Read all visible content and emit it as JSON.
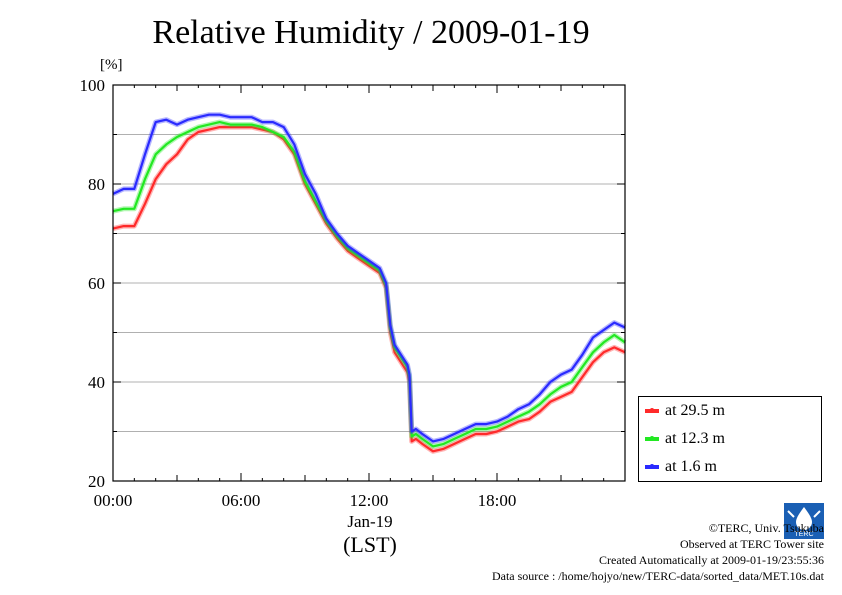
{
  "title": "Relative Humidity / 2009-01-19",
  "date_label": "Jan-19",
  "tz_label": "(LST)",
  "credits": {
    "copyright": "©TERC, Univ. Tsukuba",
    "observed": "Observed at TERC Tower site",
    "created": "Created Automatically at 2009-01-19/23:55:36",
    "source": "Data source : /home/hojyo/new/TERC-data/sorted_data/MET.10s.dat"
  },
  "logo": {
    "icon": "terc-logo-icon",
    "text": "TERC"
  },
  "colors": {
    "at_29_5": "#ff2a2a",
    "at_12_3": "#22e822",
    "at_1_6": "#2a2aff"
  },
  "chart_data": {
    "type": "line",
    "title": "Relative Humidity / 2009-01-19",
    "ylabel": "[%]",
    "xlabel": "Jan-19 (LST)",
    "ylim": [
      20,
      100
    ],
    "xlim": [
      0,
      24
    ],
    "x_unit": "hour (LST)",
    "xticks": [
      0,
      6,
      12,
      18
    ],
    "xtick_labels": [
      "00:00",
      "06:00",
      "12:00",
      "18:00"
    ],
    "yticks": [
      20,
      40,
      60,
      80,
      100
    ],
    "ytick_labels": [
      "20",
      "40",
      "60",
      "80",
      "100"
    ],
    "grid": "horizontal",
    "legend_position": "bottom-right",
    "x": [
      0,
      0.5,
      1,
      1.5,
      2,
      2.5,
      3,
      3.5,
      4,
      4.5,
      5,
      5.5,
      6,
      6.5,
      7,
      7.5,
      8,
      8.5,
      9,
      9.5,
      10,
      10.5,
      11,
      11.5,
      12,
      12.5,
      12.8,
      13,
      13.2,
      13.5,
      13.8,
      13.9,
      14,
      14.2,
      14.5,
      15,
      15.5,
      16,
      16.5,
      17,
      17.5,
      18,
      18.5,
      19,
      19.5,
      20,
      20.5,
      21,
      21.5,
      22,
      22.5,
      23,
      23.5,
      24
    ],
    "series": [
      {
        "name": "at 29.5 m",
        "values": [
          71,
          71.5,
          71.5,
          76,
          81,
          84,
          86,
          89,
          90.5,
          91,
          91.5,
          91.5,
          91.5,
          91.5,
          91,
          90.5,
          89,
          86,
          80,
          76,
          72,
          69,
          66.5,
          65,
          63.5,
          62,
          59,
          50,
          46,
          44,
          42,
          40,
          28,
          28.5,
          27.5,
          26,
          26.5,
          27.5,
          28.5,
          29.5,
          29.5,
          30,
          31,
          32,
          32.5,
          34,
          36,
          37,
          38,
          41,
          44,
          46,
          47,
          46
        ]
      },
      {
        "name": "at 12.3 m",
        "values": [
          74.5,
          75,
          75,
          81,
          86,
          88,
          89.5,
          90.5,
          91.5,
          92,
          92.5,
          92,
          92,
          92,
          91.5,
          90.5,
          89.5,
          86.5,
          80.5,
          76.5,
          72.5,
          69.5,
          67,
          65.5,
          64,
          62.5,
          59.5,
          51,
          47,
          45,
          43,
          41,
          29,
          29.5,
          28.5,
          27,
          27.5,
          28.5,
          29.5,
          30.5,
          30.5,
          31,
          32,
          33,
          34,
          35.5,
          37.5,
          39,
          40,
          43,
          46,
          48,
          49.5,
          48
        ]
      },
      {
        "name": "at 1.6 m",
        "values": [
          78,
          79,
          79,
          86,
          92.5,
          93,
          92,
          93,
          93.5,
          94,
          94,
          93.5,
          93.5,
          93.5,
          92.5,
          92.5,
          91.5,
          88,
          82,
          78,
          73,
          70,
          67.5,
          66,
          64.5,
          63,
          60,
          51.5,
          47.5,
          45.5,
          43.5,
          41.5,
          30,
          30.5,
          29.5,
          28,
          28.5,
          29.5,
          30.5,
          31.5,
          31.5,
          32,
          33,
          34.5,
          35.5,
          37.5,
          40,
          41.5,
          42.5,
          45.5,
          49,
          50.5,
          52,
          51
        ]
      }
    ]
  }
}
